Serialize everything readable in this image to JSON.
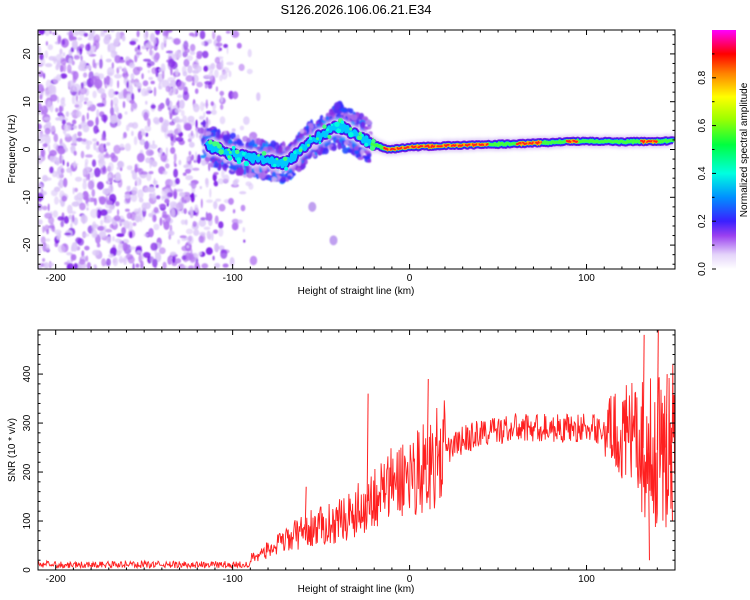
{
  "title": "S126.2026.106.06.21.E34",
  "chart_data": [
    {
      "type": "heatmap",
      "xlabel": "Height of straight line (km)",
      "ylabel": "Frequency (Hz)",
      "xlim": [
        -210,
        150
      ],
      "ylim": [
        -25,
        25
      ],
      "xticks": [
        -200,
        -100,
        0,
        100
      ],
      "yticks": [
        -20,
        -10,
        0,
        10,
        20
      ],
      "colorbar": {
        "label": "Normalized spectral amplitude",
        "range": [
          0,
          1
        ],
        "ticks": [
          0.0,
          0.2,
          0.4,
          0.6,
          0.8
        ],
        "colormap": [
          "#ffffff",
          "#e0d0f8",
          "#8a2be2",
          "#3030ff",
          "#00c0ff",
          "#00ff80",
          "#80ff00",
          "#ffff00",
          "#ff8000",
          "#ff0000",
          "#ff00ff"
        ]
      },
      "features": {
        "noise_region_km": [
          -210,
          -90
        ],
        "noise_amplitude": 0.2,
        "noisy_band_km": [
          -117,
          -30
        ],
        "noisy_band_freq_hz": [
          -8,
          10
        ],
        "ridge_centerline": [
          {
            "x": -115,
            "y": 1
          },
          {
            "x": -100,
            "y": -1
          },
          {
            "x": -85,
            "y": -2
          },
          {
            "x": -70,
            "y": -3
          },
          {
            "x": -55,
            "y": 2
          },
          {
            "x": -40,
            "y": 5
          },
          {
            "x": -30,
            "y": 3
          },
          {
            "x": -20,
            "y": 1
          },
          {
            "x": -12,
            "y": 0
          },
          {
            "x": 0,
            "y": 0.5
          },
          {
            "x": 20,
            "y": 0.8
          },
          {
            "x": 40,
            "y": 1
          },
          {
            "x": 60,
            "y": 1.2
          },
          {
            "x": 80,
            "y": 1.5
          },
          {
            "x": 100,
            "y": 1.8
          },
          {
            "x": 120,
            "y": 1.6
          },
          {
            "x": 150,
            "y": 1.8
          }
        ],
        "strong_segments_km": [
          [
            -15,
            45
          ],
          [
            60,
            75
          ],
          [
            88,
            95
          ],
          [
            130,
            140
          ]
        ],
        "tail_points": [
          {
            "x": -55,
            "y": -12
          },
          {
            "x": -43,
            "y": -19
          }
        ]
      }
    },
    {
      "type": "line",
      "xlabel": "Height of straight line (km)",
      "ylabel": "SNR (10 * v/v)",
      "xlim": [
        -210,
        150
      ],
      "ylim": [
        0,
        490
      ],
      "xticks": [
        -200,
        -100,
        0,
        100
      ],
      "yticks": [
        0,
        100,
        200,
        300,
        400
      ],
      "series": [
        {
          "name": "SNR",
          "color": "#ff2020",
          "envelope": [
            {
              "x": -210,
              "y": 12
            },
            {
              "x": -150,
              "y": 12
            },
            {
              "x": -110,
              "y": 12
            },
            {
              "x": -90,
              "y": 25
            },
            {
              "x": -80,
              "y": 40
            },
            {
              "x": -70,
              "y": 60
            },
            {
              "x": -60,
              "y": 80
            },
            {
              "x": -50,
              "y": 90
            },
            {
              "x": -40,
              "y": 100
            },
            {
              "x": -30,
              "y": 120
            },
            {
              "x": -20,
              "y": 150
            },
            {
              "x": -10,
              "y": 175
            },
            {
              "x": 0,
              "y": 195
            },
            {
              "x": 10,
              "y": 215
            },
            {
              "x": 20,
              "y": 240
            },
            {
              "x": 30,
              "y": 265
            },
            {
              "x": 40,
              "y": 280
            },
            {
              "x": 60,
              "y": 290
            },
            {
              "x": 80,
              "y": 290
            },
            {
              "x": 100,
              "y": 290
            },
            {
              "x": 115,
              "y": 285
            },
            {
              "x": 125,
              "y": 270
            },
            {
              "x": 135,
              "y": 240
            },
            {
              "x": 145,
              "y": 250
            },
            {
              "x": 150,
              "y": 260
            }
          ],
          "spikes": [
            {
              "x": -59,
              "y": 170
            },
            {
              "x": -24,
              "y": 360
            },
            {
              "x": 10,
              "y": 390
            },
            {
              "x": 132,
              "y": 480
            },
            {
              "x": 140,
              "y": 490
            },
            {
              "x": 145,
              "y": 400
            },
            {
              "x": 135,
              "y": 20
            },
            {
              "x": 148,
              "y": 100
            }
          ]
        }
      ]
    }
  ]
}
